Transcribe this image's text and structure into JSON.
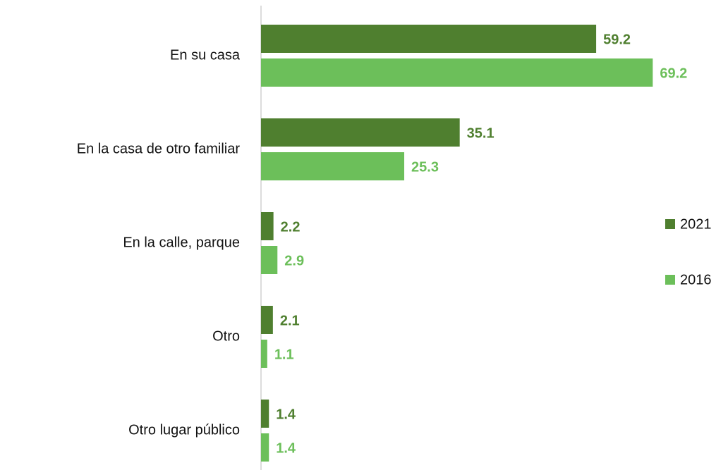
{
  "chart_data": {
    "type": "barh",
    "categories": [
      "En su casa",
      "En la casa de otro familiar",
      "En la calle, parque",
      "Otro",
      "Otro lugar público"
    ],
    "series": [
      {
        "name": "2021",
        "color": "#4f7f2f",
        "values": [
          59.2,
          35.1,
          2.2,
          2.1,
          1.4
        ]
      },
      {
        "name": "2016",
        "color": "#6cbf5a",
        "values": [
          69.2,
          25.3,
          2.9,
          1.1,
          1.4
        ]
      }
    ],
    "xlim": [
      0,
      80
    ],
    "legend": "right",
    "data_labels": true
  }
}
